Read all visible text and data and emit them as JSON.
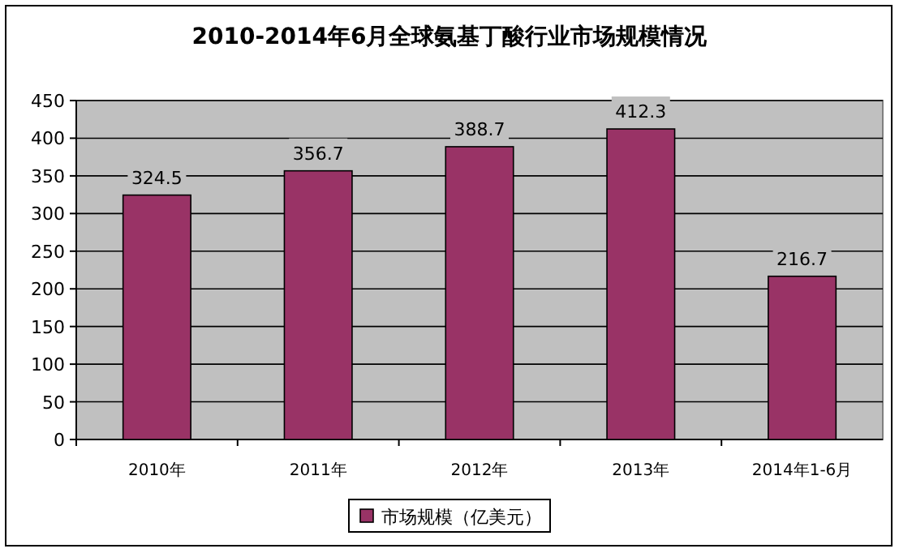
{
  "chart_data": {
    "type": "bar",
    "title": "2010-2014年6月全球氨基丁酸行业市场规模情况",
    "categories": [
      "2010年",
      "2011年",
      "2012年",
      "2013年",
      "2014年1-6月"
    ],
    "series": [
      {
        "name": "市场规模（亿美元）",
        "color": "#993366",
        "values": [
          324.5,
          356.7,
          388.7,
          412.3,
          216.7
        ]
      }
    ],
    "ylim": [
      0,
      450
    ],
    "yticks": [
      0,
      50,
      100,
      150,
      200,
      250,
      300,
      350,
      400,
      450
    ],
    "grid": "y",
    "legend": "bottom",
    "data_labels": true
  }
}
